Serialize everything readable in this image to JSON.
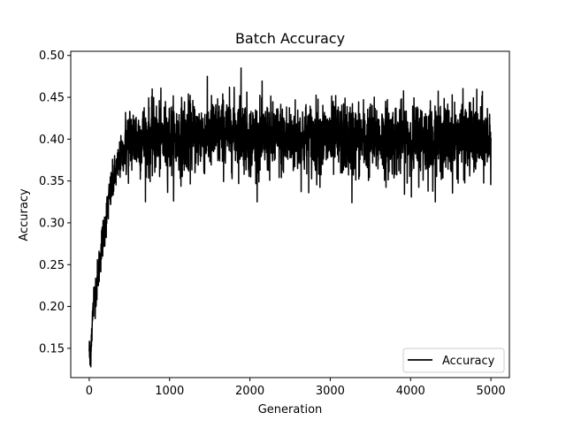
{
  "chart_data": {
    "type": "line",
    "title": "Batch Accuracy",
    "xlabel": "Generation",
    "ylabel": "Accuracy",
    "xlim": [
      -230,
      5230
    ],
    "ylim": [
      0.115,
      0.505
    ],
    "x_ticks": [
      0,
      1000,
      2000,
      3000,
      4000,
      5000
    ],
    "x_tick_labels": [
      "0",
      "1000",
      "2000",
      "3000",
      "4000",
      "5000"
    ],
    "y_ticks": [
      0.15,
      0.2,
      0.25,
      0.3,
      0.35,
      0.4,
      0.45,
      0.5
    ],
    "y_tick_labels": [
      "0.15",
      "0.20",
      "0.25",
      "0.30",
      "0.35",
      "0.40",
      "0.45",
      "0.50"
    ],
    "grid": false,
    "legend_position": "lower-right",
    "line_color": "#000000",
    "series": [
      {
        "name": "Accuracy",
        "color": "#000000",
        "x_range": [
          0,
          5000
        ],
        "description_points": [
          [
            0,
            0.15
          ],
          [
            10,
            0.135
          ],
          [
            30,
            0.17
          ],
          [
            60,
            0.21
          ],
          [
            100,
            0.23
          ],
          [
            150,
            0.27
          ],
          [
            200,
            0.3
          ],
          [
            250,
            0.33
          ],
          [
            300,
            0.35
          ],
          [
            400,
            0.38
          ],
          [
            500,
            0.4
          ],
          [
            1000,
            0.4
          ],
          [
            1900,
            0.41
          ],
          [
            2000,
            0.4
          ],
          [
            3000,
            0.4
          ],
          [
            4000,
            0.4
          ],
          [
            5000,
            0.4
          ]
        ],
        "noise_band": [
          0.325,
          0.485
        ],
        "max_point": [
          1890,
          0.485
        ],
        "min_point_after_warmup": [
          3270,
          0.324
        ]
      }
    ]
  }
}
